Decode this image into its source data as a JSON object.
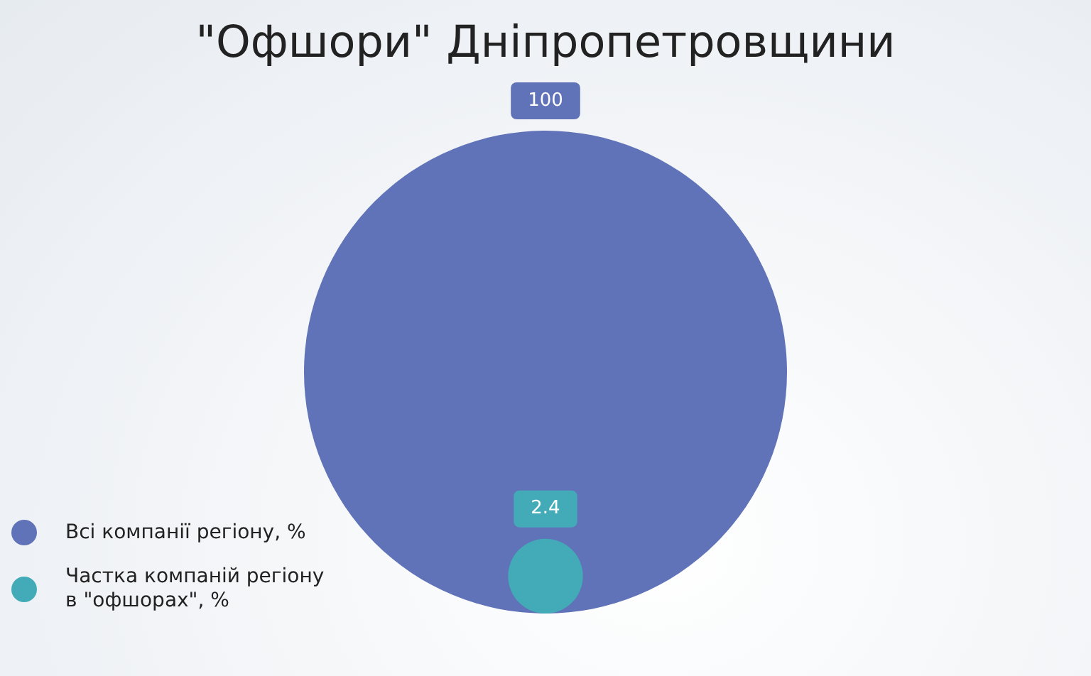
{
  "chart_data": {
    "type": "other",
    "title": "\"Офшори\" Дніпропетровщини",
    "categories": [
      "Всі компанії регіону, %",
      "Частка компаній регіону в \"офшорах\", %"
    ],
    "values": [
      100,
      2.4
    ],
    "colors": [
      "#6173b8",
      "#43abb8"
    ],
    "data_labels": true
  }
}
